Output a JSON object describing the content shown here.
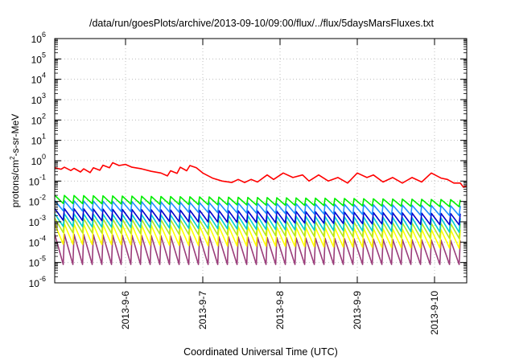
{
  "chart_data": {
    "type": "line",
    "title": "/data/run/goesPlots/archive/2013-09-10/09:00/flux/../flux/5daysMarsFluxes.txt",
    "xlabel": "Coordinated Universal Time (UTC)",
    "ylabel_parts": [
      "protons/cm",
      "2",
      "-s-sr-MeV"
    ],
    "yscale": "log",
    "ylim": [
      1e-06,
      1000000.0
    ],
    "xlim": [
      "2013-09-05 02:00",
      "2013-09-10 10:00"
    ],
    "y_ticks": [
      {
        "value": 1e-06,
        "base": "10",
        "exp": "-6"
      },
      {
        "value": 1e-05,
        "base": "10",
        "exp": "-5"
      },
      {
        "value": 0.0001,
        "base": "10",
        "exp": "-4"
      },
      {
        "value": 0.001,
        "base": "10",
        "exp": "-3"
      },
      {
        "value": 0.01,
        "base": "10",
        "exp": "-2"
      },
      {
        "value": 0.1,
        "base": "10",
        "exp": "-1"
      },
      {
        "value": 1,
        "base": "10",
        "exp": "0"
      },
      {
        "value": 10,
        "base": "10",
        "exp": "1"
      },
      {
        "value": 100,
        "base": "10",
        "exp": "2"
      },
      {
        "value": 1000,
        "base": "10",
        "exp": "3"
      },
      {
        "value": 10000,
        "base": "10",
        "exp": "4"
      },
      {
        "value": 100000,
        "base": "10",
        "exp": "5"
      },
      {
        "value": 1000000,
        "base": "10",
        "exp": "6"
      }
    ],
    "x_ticks": [
      {
        "date": "2013-09-06 00:00",
        "label": "2013-9-6"
      },
      {
        "date": "2013-09-07 00:00",
        "label": "2013-9-7"
      },
      {
        "date": "2013-09-08 00:00",
        "label": "2013-9-8"
      },
      {
        "date": "2013-09-09 00:00",
        "label": "2013-9-9"
      },
      {
        "date": "2013-09-10 00:00",
        "label": "2013-9-10"
      }
    ],
    "grid": true,
    "series": [
      {
        "color": "#ff0000",
        "points": [
          [
            "2013-09-05 02:00",
            0.45
          ],
          [
            "2013-09-05 04:00",
            0.38
          ],
          [
            "2013-09-05 05:00",
            0.48
          ],
          [
            "2013-09-05 07:00",
            0.33
          ],
          [
            "2013-09-05 08:00",
            0.42
          ],
          [
            "2013-09-05 10:00",
            0.28
          ],
          [
            "2013-09-05 11:00",
            0.4
          ],
          [
            "2013-09-05 13:00",
            0.26
          ],
          [
            "2013-09-05 14:00",
            0.45
          ],
          [
            "2013-09-05 16:00",
            0.34
          ],
          [
            "2013-09-05 17:00",
            0.6
          ],
          [
            "2013-09-05 19:00",
            0.45
          ],
          [
            "2013-09-05 20:00",
            0.8
          ],
          [
            "2013-09-05 22:00",
            0.58
          ],
          [
            "2013-09-06 00:00",
            0.66
          ],
          [
            "2013-09-06 02:00",
            0.48
          ],
          [
            "2013-09-06 05:00",
            0.4
          ],
          [
            "2013-09-06 08:00",
            0.3
          ],
          [
            "2013-09-06 11:00",
            0.25
          ],
          [
            "2013-09-06 13:00",
            0.18
          ],
          [
            "2013-09-06 14:00",
            0.32
          ],
          [
            "2013-09-06 16:00",
            0.24
          ],
          [
            "2013-09-06 17:00",
            0.48
          ],
          [
            "2013-09-06 19:00",
            0.32
          ],
          [
            "2013-09-06 20:00",
            0.58
          ],
          [
            "2013-09-06 22:00",
            0.45
          ],
          [
            "2013-09-07 00:00",
            0.25
          ],
          [
            "2013-09-07 03:00",
            0.14
          ],
          [
            "2013-09-07 06:00",
            0.1
          ],
          [
            "2013-09-07 09:00",
            0.085
          ],
          [
            "2013-09-07 11:00",
            0.12
          ],
          [
            "2013-09-07 13:00",
            0.085
          ],
          [
            "2013-09-07 15:00",
            0.12
          ],
          [
            "2013-09-07 17:00",
            0.09
          ],
          [
            "2013-09-07 20:00",
            0.2
          ],
          [
            "2013-09-07 22:00",
            0.12
          ],
          [
            "2013-09-08 01:00",
            0.25
          ],
          [
            "2013-09-08 04:00",
            0.15
          ],
          [
            "2013-09-08 07:00",
            0.2
          ],
          [
            "2013-09-08 09:00",
            0.1
          ],
          [
            "2013-09-08 12:00",
            0.2
          ],
          [
            "2013-09-08 15:00",
            0.1
          ],
          [
            "2013-09-08 18:00",
            0.15
          ],
          [
            "2013-09-08 21:00",
            0.08
          ],
          [
            "2013-09-09 00:00",
            0.25
          ],
          [
            "2013-09-09 03:00",
            0.15
          ],
          [
            "2013-09-09 05:00",
            0.2
          ],
          [
            "2013-09-09 08:00",
            0.09
          ],
          [
            "2013-09-09 11:00",
            0.15
          ],
          [
            "2013-09-09 14:00",
            0.08
          ],
          [
            "2013-09-09 17:00",
            0.15
          ],
          [
            "2013-09-09 20:00",
            0.09
          ],
          [
            "2013-09-09 23:00",
            0.25
          ],
          [
            "2013-09-10 02:00",
            0.14
          ],
          [
            "2013-09-10 04:00",
            0.12
          ],
          [
            "2013-09-10 06:00",
            0.08
          ],
          [
            "2013-09-10 08:00",
            0.08
          ],
          [
            "2013-09-10 09:00",
            0.05
          ],
          [
            "2013-09-10 10:00",
            0.06
          ]
        ]
      },
      {
        "color": "#00ee00",
        "sawtooth": {
          "period_hours": 3,
          "peak_start": 0.02,
          "trough_start": 0.008,
          "peak_end": 0.012,
          "trough_end": 0.0055
        }
      },
      {
        "color": "#1e90ff",
        "sawtooth": {
          "period_hours": 3,
          "peak_start": 0.011,
          "trough_start": 0.0035,
          "peak_end": 0.006,
          "trough_end": 0.002
        }
      },
      {
        "color": "#0000cd",
        "sawtooth": {
          "period_hours": 3,
          "peak_start": 0.0045,
          "trough_start": 0.0012,
          "peak_end": 0.0025,
          "trough_end": 0.0007
        }
      },
      {
        "color": "#00ced1",
        "sawtooth": {
          "period_hours": 3,
          "peak_start": 0.0025,
          "trough_start": 0.0006,
          "peak_end": 0.0015,
          "trough_end": 0.0003
        }
      },
      {
        "color": "#b5e61d",
        "sawtooth": {
          "period_hours": 3,
          "peak_start": 0.0015,
          "trough_start": 0.0003,
          "peak_end": 0.0008,
          "trough_end": 0.00015
        }
      },
      {
        "color": "#ffff00",
        "sawtooth": {
          "period_hours": 3,
          "peak_start": 0.0008,
          "trough_start": 8e-05,
          "peak_end": 0.0004,
          "trough_end": 5e-05
        }
      },
      {
        "color": "#9a3c7a",
        "sawtooth": {
          "period_hours": 3,
          "peak_start": 0.00025,
          "trough_start": 8e-06,
          "peak_end": 0.00012,
          "trough_end": 8e-06
        }
      }
    ]
  }
}
